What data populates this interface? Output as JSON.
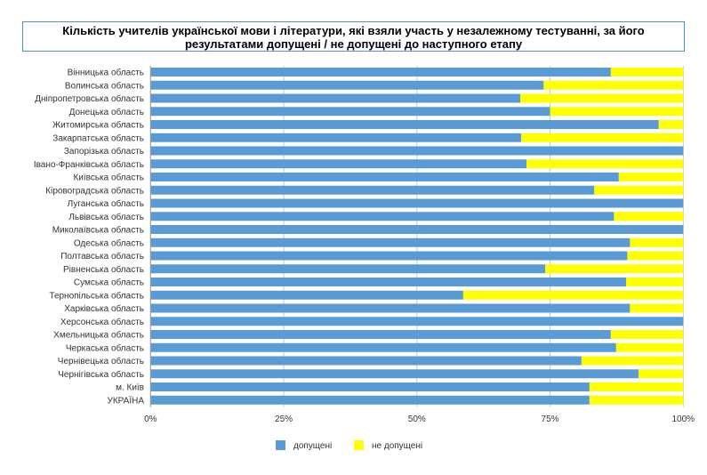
{
  "chart_data": {
    "type": "bar",
    "orientation": "horizontal",
    "stacked": "percent",
    "title": "Кількість учителів української мови і літератури, які взяли участь у незалежному тестуванні, за його результатами допущені / не допущені до наступного етапу",
    "categories": [
      "Вінницька область",
      "Волинська область",
      "Дніпропетровська область",
      "Донецька область",
      "Житомирська область",
      "Закарпатська область",
      "Запорізька область",
      "Івано-Франківська область",
      "Київська область",
      "Кіровоградська область",
      "Луганська область",
      "Львівська область",
      "Миколаївська область",
      "Одеська область",
      "Полтавська область",
      "Рівненська область",
      "Сумська область",
      "Тернопільська область",
      "Харківська область",
      "Херсонська область",
      "Хмельницька область",
      "Черкаська область",
      "Чернівецька область",
      "Чернігівська область",
      "м. Київ",
      "УКРАЇНА"
    ],
    "series": [
      {
        "name": "допущені",
        "color": "#5b9bd5",
        "values": [
          86.4,
          73.8,
          69.4,
          75.0,
          95.4,
          69.6,
          100,
          70.6,
          87.9,
          83.3,
          100,
          87.0,
          100,
          90.0,
          89.5,
          74.1,
          89.3,
          58.7,
          90.0,
          100,
          86.4,
          87.4,
          80.9,
          91.6,
          82.4,
          82.4
        ]
      },
      {
        "name": "не допущені",
        "color": "#ffff00",
        "values": [
          13.6,
          26.2,
          30.6,
          25.0,
          4.6,
          30.4,
          0,
          29.4,
          12.1,
          16.7,
          0,
          13.0,
          0,
          10.0,
          10.5,
          25.9,
          10.7,
          41.3,
          10.0,
          0,
          13.6,
          12.6,
          19.1,
          8.4,
          17.6,
          17.6
        ]
      }
    ],
    "xlim": [
      0,
      100
    ],
    "xticks": [
      "0%",
      "25%",
      "50%",
      "75%",
      "100%"
    ],
    "grid": true,
    "legend": "bottom"
  }
}
